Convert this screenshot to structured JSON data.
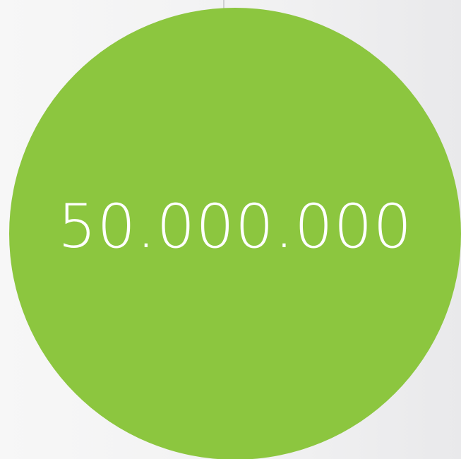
{
  "stat": {
    "value": "50.000.000",
    "circle_color": "#8cc63f",
    "text_color": "#ffffff"
  }
}
